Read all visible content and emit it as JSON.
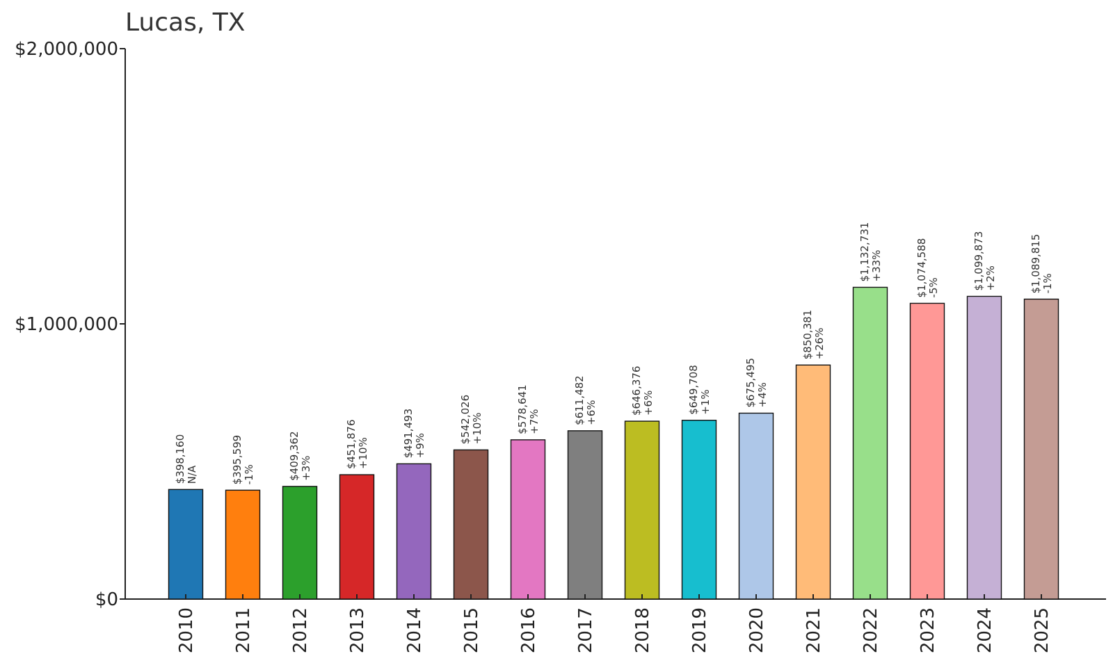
{
  "chart_data": {
    "type": "bar",
    "title": "Lucas, TX",
    "xlabel": "",
    "ylabel": "",
    "ylim": [
      0,
      2000000
    ],
    "yticks": [
      {
        "value": 0,
        "label": "$0"
      },
      {
        "value": 1000000,
        "label": "$1,000,000"
      },
      {
        "value": 2000000,
        "label": "$2,000,000"
      }
    ],
    "grid": false,
    "categories": [
      "2010",
      "2011",
      "2012",
      "2013",
      "2014",
      "2015",
      "2016",
      "2017",
      "2018",
      "2019",
      "2020",
      "2021",
      "2022",
      "2023",
      "2024",
      "2025"
    ],
    "values": [
      398160,
      395599,
      409362,
      451876,
      491493,
      542026,
      578641,
      611482,
      646376,
      649708,
      675495,
      850381,
      1132731,
      1074588,
      1099873,
      1089815
    ],
    "value_labels": [
      "$398,160",
      "$395,599",
      "$409,362",
      "$451,876",
      "$491,493",
      "$542,026",
      "$578,641",
      "$611,482",
      "$646,376",
      "$649,708",
      "$675,495",
      "$850,381",
      "$1,132,731",
      "$1,074,588",
      "$1,099,873",
      "$1,089,815"
    ],
    "change_labels": [
      "N/A",
      "-1%",
      "+3%",
      "+10%",
      "+9%",
      "+10%",
      "+7%",
      "+6%",
      "+6%",
      "+1%",
      "+4%",
      "+26%",
      "+33%",
      "-5%",
      "+2%",
      "-1%"
    ],
    "colors": [
      "#1f77b4",
      "#ff7f0e",
      "#2ca02c",
      "#d62728",
      "#9467bd",
      "#8c564b",
      "#e377c2",
      "#7f7f7f",
      "#bcbd22",
      "#17becf",
      "#aec7e8",
      "#ffbb78",
      "#98df8a",
      "#ff9896",
      "#c5b0d5",
      "#c49c94"
    ]
  }
}
